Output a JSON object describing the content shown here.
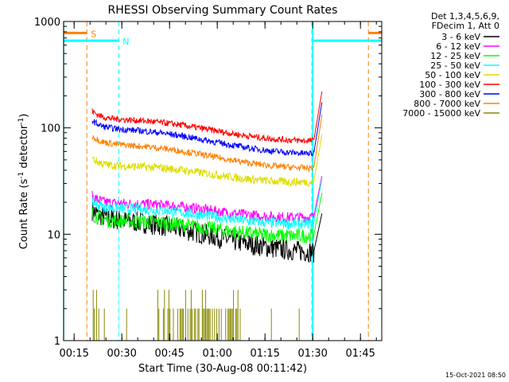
{
  "chart_data": {
    "type": "line",
    "title": "RHESSI Observing Summary Count Rates",
    "xlabel": "Start Time (30-Aug-08 00:11:42)",
    "ylabel_main": "Count Rate (s",
    "ylabel_sup1": "-1",
    "ylabel_mid": " detector",
    "ylabel_sup2": "-1",
    "ylabel_end": ")",
    "yscale": "log",
    "ylim": [
      1,
      1000
    ],
    "xlim_minutes": [
      0,
      100
    ],
    "x_ticks": [
      {
        "min": 3.3,
        "label": "00:15"
      },
      {
        "min": 18.3,
        "label": "00:30"
      },
      {
        "min": 33.3,
        "label": "00:45"
      },
      {
        "min": 48.3,
        "label": "01:00"
      },
      {
        "min": 63.3,
        "label": "01:15"
      },
      {
        "min": 78.3,
        "label": "01:30"
      },
      {
        "min": 93.3,
        "label": "01:45"
      }
    ],
    "y_ticks": [
      {
        "value": 1,
        "label": "1"
      },
      {
        "value": 10,
        "label": "10"
      },
      {
        "value": 100,
        "label": "100"
      },
      {
        "value": 1000,
        "label": "1000"
      }
    ],
    "legend": {
      "position": "top-right",
      "header": [
        "Det 1,3,4,5,6,9,",
        "FDecim 1, Att 0"
      ]
    },
    "series": [
      {
        "name": "3 - 6 keV",
        "color": "#000000",
        "start_value": 14,
        "end_value": 7,
        "noise": 0.1
      },
      {
        "name": "6 - 12 keV",
        "color": "#ff00ff",
        "start_value": 19,
        "end_value": 15,
        "noise": 0.05
      },
      {
        "name": "12 - 25 keV",
        "color": "#00ff00",
        "start_value": 13,
        "end_value": 10,
        "noise": 0.07
      },
      {
        "name": "25 - 50 keV",
        "color": "#00ffff",
        "start_value": 17,
        "end_value": 13,
        "noise": 0.05
      },
      {
        "name": "50 - 100 keV",
        "color": "#dddd00",
        "start_value": 43,
        "end_value": 32,
        "noise": 0.04
      },
      {
        "name": "100 - 300 keV",
        "color": "#ff0000",
        "start_value": 120,
        "end_value": 78,
        "noise": 0.03
      },
      {
        "name": "300 - 800 keV",
        "color": "#0000ff",
        "start_value": 98,
        "end_value": 59,
        "noise": 0.03
      },
      {
        "name": "800 - 7000 keV",
        "color": "#ff8000",
        "start_value": 70,
        "end_value": 43,
        "noise": 0.03
      },
      {
        "name": "7000 - 15000 keV",
        "color": "#888800",
        "start_value": 1,
        "end_value": 1,
        "noise": 0
      }
    ],
    "markers": [
      {
        "label": "S",
        "color": "#ff8000",
        "start_min": 7.3,
        "end_min": 95.8,
        "level": 780
      },
      {
        "label": "N",
        "color": "#00ffff",
        "start_min": 17.3,
        "end_min": 78.0,
        "level": 660
      }
    ],
    "night_boundaries_min": [
      0,
      78.3
    ],
    "data_window_min": [
      9.0,
      81.2
    ]
  },
  "timestamp": "15-Oct-2021 08:50"
}
